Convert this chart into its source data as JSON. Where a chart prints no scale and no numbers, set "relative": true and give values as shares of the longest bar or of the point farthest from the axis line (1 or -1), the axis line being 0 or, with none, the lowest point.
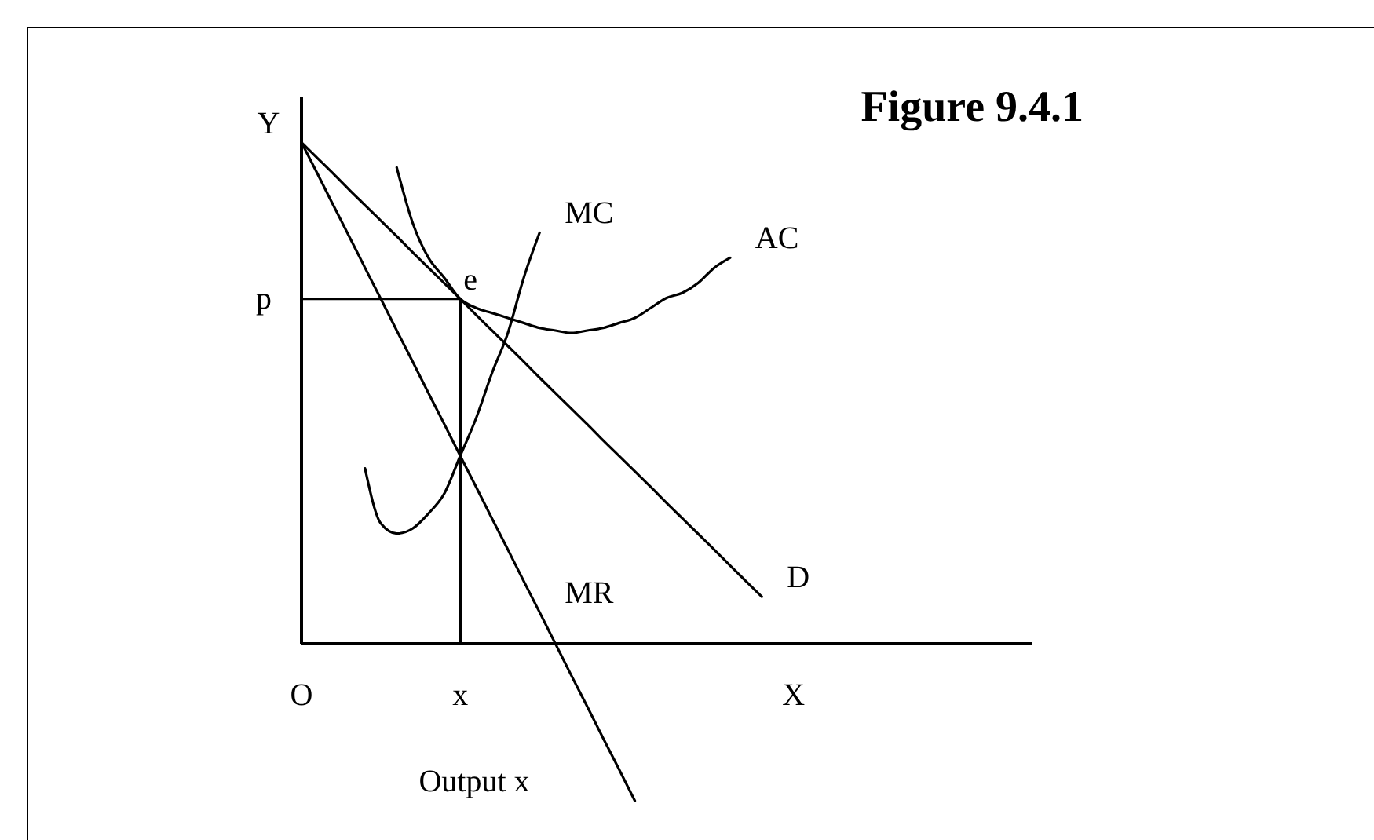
{
  "chart_data": {
    "type": "line",
    "title": "Figure 9.4.1",
    "xlabel": "Output x",
    "ylabel": "Y",
    "relative": true,
    "marker": "none",
    "categories": [
      "O",
      null,
      null,
      null,
      null,
      null,
      null,
      null,
      null,
      null,
      "x",
      null,
      null,
      null,
      null,
      null,
      null,
      null,
      null,
      null,
      null,
      null,
      null,
      null,
      null,
      null,
      null,
      null,
      null,
      null,
      null,
      "X",
      null,
      null,
      null,
      null,
      null,
      null,
      null,
      null,
      null,
      null,
      null,
      null,
      null,
      null,
      null
    ],
    "series": [
      {
        "name": "MC",
        "color": "#000000",
        "values": [
          null,
          null,
          null,
          null,
          0.35,
          0.24,
          0.22,
          0.23,
          0.26,
          0.3,
          0.375,
          0.45,
          0.54,
          0.62,
          0.73,
          0.82,
          null,
          null,
          null,
          null,
          null,
          null,
          null,
          null,
          null,
          null,
          null,
          null,
          null,
          null,
          null,
          null,
          null,
          null,
          null,
          null,
          null,
          null,
          null,
          null,
          null,
          null,
          null,
          null,
          null,
          null,
          null
        ]
      },
      {
        "name": "AC",
        "color": "#000000",
        "values": [
          null,
          null,
          null,
          null,
          null,
          null,
          0.95,
          0.84,
          0.77,
          0.73,
          0.688,
          0.67,
          0.66,
          0.65,
          0.64,
          0.63,
          0.625,
          0.62,
          0.625,
          0.63,
          0.64,
          0.65,
          0.67,
          0.69,
          0.7,
          0.72,
          0.75,
          0.77,
          null,
          null,
          null,
          null,
          null,
          null,
          null,
          null,
          null,
          null,
          null,
          null,
          null,
          null,
          null,
          null,
          null,
          null,
          null
        ]
      },
      {
        "name": "MR",
        "color": "#000000",
        "values": [
          1,
          0.938,
          0.875,
          0.813,
          0.75,
          0.688,
          0.625,
          0.563,
          0.5,
          0.438,
          0.375,
          0.313,
          0.25,
          0.188,
          0.125,
          0.063,
          0,
          -0.063,
          -0.125,
          -0.188,
          -0.25,
          -0.313,
          null,
          null,
          null,
          null,
          null,
          null,
          null,
          null,
          null,
          null,
          null,
          null,
          null,
          null,
          null,
          null,
          null,
          null,
          null,
          null,
          null,
          null,
          null,
          null,
          null
        ]
      },
      {
        "name": "D",
        "color": "#000000",
        "values": [
          1,
          0.969,
          0.938,
          0.906,
          0.875,
          0.844,
          0.813,
          0.781,
          0.75,
          0.719,
          0.688,
          0.656,
          0.625,
          0.594,
          0.563,
          0.531,
          0.5,
          0.469,
          0.438,
          0.406,
          0.375,
          0.344,
          0.313,
          0.281,
          0.25,
          0.219,
          0.188,
          0.156,
          0.125,
          0.094,
          null,
          null,
          null,
          null,
          null,
          null,
          null,
          null,
          null,
          null,
          null,
          null,
          null,
          null,
          null,
          null,
          null
        ]
      },
      {
        "color": "#000000",
        "values": [
          0.688,
          0.688,
          0.688,
          0.688,
          0.688,
          0.688,
          0.688,
          0.688,
          0.688,
          0.688,
          0.688,
          null,
          null,
          null,
          null,
          null,
          null,
          null,
          null,
          null,
          null,
          null,
          null,
          null,
          null,
          null,
          null,
          null,
          null,
          null,
          null,
          null,
          null,
          null,
          null,
          null,
          null,
          null,
          null,
          null,
          null,
          null,
          null,
          null,
          null,
          null,
          null
        ]
      },
      {
        "type": "bar",
        "color": "#000000",
        "values": [
          null,
          null,
          null,
          null,
          null,
          null,
          null,
          null,
          null,
          null,
          0.688,
          null,
          null,
          null,
          null,
          null,
          null,
          null,
          null,
          null,
          null,
          null,
          null,
          null,
          null,
          null,
          null,
          null,
          null,
          null,
          null,
          null,
          null,
          null,
          null,
          null,
          null,
          null,
          null,
          null,
          null,
          null,
          null,
          null,
          null,
          null,
          null
        ]
      }
    ],
    "annotations": [
      {
        "text": "p",
        "x": "O",
        "y": 0.688
      },
      {
        "text": "e",
        "x": "x",
        "y": 0.688
      }
    ]
  }
}
